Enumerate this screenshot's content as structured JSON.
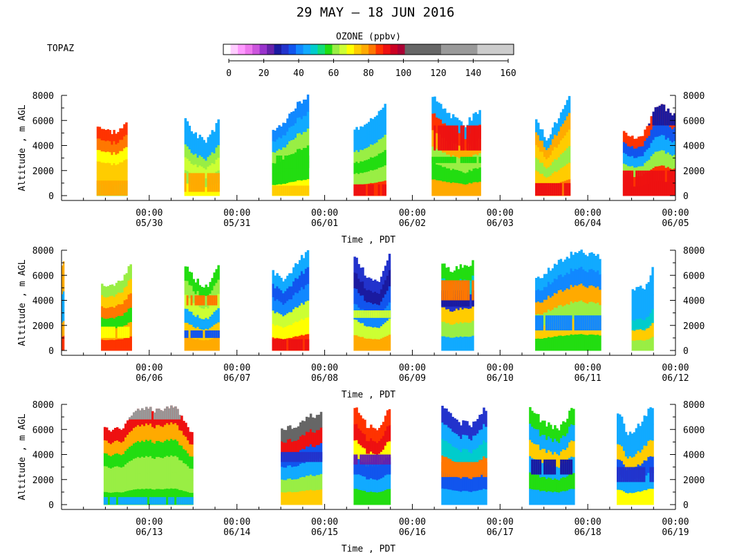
{
  "title": "29 MAY – 18 JUN 2016",
  "site_label": "TOPAZ",
  "colorbar": {
    "title": "OZONE (ppbv)",
    "ticks": [
      0,
      20,
      40,
      60,
      80,
      100,
      120,
      140,
      160
    ],
    "segments": [
      {
        "from": 0,
        "to": 4,
        "color": "#ffffff"
      },
      {
        "from": 4,
        "to": 8,
        "color": "#ffccff"
      },
      {
        "from": 8,
        "to": 12,
        "color": "#ff99ff"
      },
      {
        "from": 12,
        "to": 16,
        "color": "#ee77ee"
      },
      {
        "from": 16,
        "to": 20,
        "color": "#cc55dd"
      },
      {
        "from": 20,
        "to": 24,
        "color": "#9933cc"
      },
      {
        "from": 24,
        "to": 28,
        "color": "#6622aa"
      },
      {
        "from": 28,
        "to": 32,
        "color": "#1a1aa0"
      },
      {
        "from": 32,
        "to": 36,
        "color": "#2233cc"
      },
      {
        "from": 36,
        "to": 40,
        "color": "#1155ee"
      },
      {
        "from": 40,
        "to": 44,
        "color": "#1188ff"
      },
      {
        "from": 44,
        "to": 48,
        "color": "#11aaff"
      },
      {
        "from": 48,
        "to": 52,
        "color": "#00cccc"
      },
      {
        "from": 52,
        "to": 56,
        "color": "#11dd77"
      },
      {
        "from": 56,
        "to": 60,
        "color": "#22dd11"
      },
      {
        "from": 60,
        "to": 64,
        "color": "#99ee44"
      },
      {
        "from": 64,
        "to": 68,
        "color": "#ccff33"
      },
      {
        "from": 68,
        "to": 72,
        "color": "#ffff00"
      },
      {
        "from": 72,
        "to": 76,
        "color": "#ffcc00"
      },
      {
        "from": 76,
        "to": 80,
        "color": "#ffaa00"
      },
      {
        "from": 80,
        "to": 84,
        "color": "#ff7700"
      },
      {
        "from": 84,
        "to": 88,
        "color": "#ff3300"
      },
      {
        "from": 88,
        "to": 92,
        "color": "#ee1111"
      },
      {
        "from": 92,
        "to": 96,
        "color": "#cc0022"
      },
      {
        "from": 96,
        "to": 100,
        "color": "#aa0033"
      },
      {
        "from": 100,
        "to": 120,
        "color": "#666666"
      },
      {
        "from": 120,
        "to": 140,
        "color": "#999999"
      },
      {
        "from": 140,
        "to": 160,
        "color": "#cccccc"
      }
    ]
  },
  "chart_data": [
    {
      "type": "heatmap",
      "xlabel": "Time , PDT",
      "ylabel": "Altitude , m AGL",
      "ylim": [
        0,
        8000
      ],
      "yticks": [
        0,
        2000,
        4000,
        6000,
        8000
      ],
      "x_start_day": 29,
      "x_days": 7,
      "xticks": [
        "05/30",
        "05/31",
        "06/01",
        "06/02",
        "06/03",
        "06/04",
        "06/05"
      ],
      "xtick_time": "00:00",
      "periods": [
        {
          "start": 0.4,
          "end": 0.75,
          "top": [
            5700,
            5200,
            5100,
            5800
          ],
          "profile": [
            "#99ee44",
            "#ffcc00",
            "#ffcc00",
            "#ffff00",
            "#ff7700",
            "#ff3300"
          ],
          "bands": [
            {
              "y0": 0,
              "y1": 1200,
              "color": "#ffaa00"
            }
          ]
        },
        {
          "start": 1.4,
          "end": 1.8,
          "top": [
            6300,
            4800,
            4400,
            6000
          ],
          "profile": [
            "#ffff00",
            "#99ee44",
            "#ccff33",
            "#99ee44",
            "#11aaff",
            "#11aaff"
          ],
          "bands": [
            {
              "y0": 300,
              "y1": 1800,
              "color": "#ffaa00"
            }
          ]
        },
        {
          "start": 2.4,
          "end": 2.82,
          "top": [
            5200,
            5800,
            7200,
            8000
          ],
          "profile": [
            "#ffff00",
            "#22dd11",
            "#22dd11",
            "#99ee44",
            "#11aaff",
            "#1188ff"
          ],
          "bands": [
            {
              "y0": 0,
              "y1": 800,
              "color": "#ffcc00"
            },
            {
              "y0": 2200,
              "y1": 3200,
              "color": "#22dd11"
            }
          ]
        },
        {
          "start": 3.33,
          "end": 3.7,
          "top": [
            5200,
            5800,
            6500,
            7200
          ],
          "profile": [
            "#ff3300",
            "#99ee44",
            "#22dd11",
            "#99ee44",
            "#11aaff",
            "#11aaff"
          ],
          "bands": [
            {
              "y0": 0,
              "y1": 900,
              "color": "#ee1111"
            }
          ]
        },
        {
          "start": 4.22,
          "end": 4.78,
          "top": [
            8000,
            6600,
            5600,
            7000
          ],
          "profile": [
            "#ffaa00",
            "#22dd11",
            "#99ee44",
            "#ffaa00",
            "#ff3300",
            "#11aaff"
          ],
          "bands": [
            {
              "y0": 2600,
              "y1": 3100,
              "color": "#22dd11"
            },
            {
              "y0": 3600,
              "y1": 5600,
              "color": "#ee1111"
            }
          ]
        },
        {
          "start": 5.4,
          "end": 5.8,
          "top": [
            6000,
            4600,
            6200,
            7900
          ],
          "profile": [
            "#ff7700",
            "#ffcc00",
            "#99ee44",
            "#ffcc00",
            "#ffaa00",
            "#11aaff"
          ],
          "bands": [
            {
              "y0": 0,
              "y1": 1000,
              "color": "#ee1111"
            }
          ]
        },
        {
          "start": 6.4,
          "end": 7.0,
          "top": [
            5000,
            4600,
            7300,
            6500
          ],
          "profile": [
            "#ee1111",
            "#ff3300",
            "#99ee44",
            "#11aaff",
            "#1155ee",
            "#ff3300"
          ],
          "bands": [
            {
              "y0": 0,
              "y1": 2000,
              "color": "#ee1111"
            },
            {
              "y0": 5600,
              "y1": 7300,
              "color": "#1a1aa0"
            }
          ]
        }
      ]
    },
    {
      "type": "heatmap",
      "xlabel": "Time , PDT",
      "ylabel": "Altitude , m AGL",
      "ylim": [
        0,
        8000
      ],
      "yticks": [
        0,
        2000,
        4000,
        6000,
        8000
      ],
      "x_start_day": 5,
      "x_days": 7,
      "xticks": [
        "06/06",
        "06/07",
        "06/08",
        "06/09",
        "06/10",
        "06/11",
        "06/12"
      ],
      "xtick_time": "00:00",
      "periods": [
        {
          "start": 0.0,
          "end": 0.03,
          "top": [
            7000,
            7000
          ],
          "profile": [
            "#ff3300",
            "#ffaa00",
            "#11aaff",
            "#11aaff",
            "#ffaa00",
            "#ffaa00"
          ],
          "bands": []
        },
        {
          "start": 0.45,
          "end": 0.8,
          "top": [
            5300,
            5100,
            5600,
            6900
          ],
          "profile": [
            "#ff3300",
            "#ffaa00",
            "#22dd11",
            "#ff7700",
            "#ffcc00",
            "#99ee44"
          ],
          "bands": [
            {
              "y0": 1000,
              "y1": 1900,
              "color": "#ffff00"
            }
          ]
        },
        {
          "start": 1.4,
          "end": 1.8,
          "top": [
            7000,
            5600,
            5000,
            7000
          ],
          "profile": [
            "#ffaa00",
            "#ffcc00",
            "#11aaff",
            "#ccff33",
            "#99ee44",
            "#22dd11"
          ],
          "bands": [
            {
              "y0": 1000,
              "y1": 1600,
              "color": "#1155ee"
            },
            {
              "y0": 3600,
              "y1": 4400,
              "color": "#ff7700"
            }
          ]
        },
        {
          "start": 2.4,
          "end": 2.82,
          "top": [
            6300,
            5400,
            7000,
            8000
          ],
          "profile": [
            "#ff3300",
            "#ffff00",
            "#ccff33",
            "#1188ff",
            "#1155ee",
            "#11aaff"
          ],
          "bands": [
            {
              "y0": 0,
              "y1": 900,
              "color": "#ee1111"
            }
          ]
        },
        {
          "start": 3.33,
          "end": 3.75,
          "top": [
            7700,
            6000,
            5300,
            8000
          ],
          "profile": [
            "#ffaa00",
            "#ccff33",
            "#1188ff",
            "#1155ee",
            "#1a1aa0",
            "#2233cc"
          ],
          "bands": [
            {
              "y0": 2600,
              "y1": 3200,
              "color": "#ccff33"
            }
          ]
        },
        {
          "start": 4.33,
          "end": 4.7,
          "top": [
            7000,
            6300,
            6800,
            7000
          ],
          "profile": [
            "#11aaff",
            "#99ee44",
            "#ffcc00",
            "#2233cc",
            "#00cccc",
            "#22dd11"
          ],
          "bands": [
            {
              "y0": 3500,
              "y1": 4800,
              "color": "#1a1aa0"
            },
            {
              "y0": 4000,
              "y1": 5600,
              "color": "#ff7700"
            }
          ]
        },
        {
          "start": 5.4,
          "end": 6.15,
          "top": [
            5500,
            7000,
            8000,
            7400
          ],
          "profile": [
            "#22dd11",
            "#ffcc00",
            "#99ee44",
            "#ffaa00",
            "#1188ff",
            "#11aaff"
          ],
          "bands": [
            {
              "y0": 1600,
              "y1": 2800,
              "color": "#1188ff"
            }
          ]
        },
        {
          "start": 6.5,
          "end": 6.75,
          "top": [
            5000,
            5000,
            5000,
            6700
          ],
          "profile": [
            "#99ee44",
            "#ffcc00",
            "#00cccc",
            "#11aaff",
            "#11aaff",
            "#11aaff"
          ],
          "bands": []
        }
      ]
    },
    {
      "type": "heatmap",
      "xlabel": "Time , PDT",
      "ylabel": "Altitude , m AGL",
      "ylim": [
        0,
        8000
      ],
      "yticks": [
        0,
        2000,
        4000,
        6000,
        8000
      ],
      "x_start_day": 12,
      "x_days": 7,
      "xticks": [
        "06/13",
        "06/14",
        "06/15",
        "06/16",
        "06/17",
        "06/18",
        "06/19"
      ],
      "xtick_time": "00:00",
      "periods": [
        {
          "start": 0.48,
          "end": 1.5,
          "top": [
            6000,
            6000,
            7700,
            7500,
            8000,
            5500
          ],
          "profile": [
            "#22dd11",
            "#99ee44",
            "#99ee44",
            "#22dd11",
            "#ffaa00",
            "#ee1111"
          ],
          "bands": [
            {
              "y0": 0,
              "y1": 600,
              "color": "#11aaff"
            },
            {
              "y0": 6800,
              "y1": 8000,
              "color": "#999999"
            }
          ]
        },
        {
          "start": 2.5,
          "end": 2.97,
          "top": [
            6000,
            6200,
            7000,
            7300
          ],
          "profile": [
            "#ffcc00",
            "#99ee44",
            "#11aaff",
            "#1155ee",
            "#ee1111",
            "#666666"
          ],
          "bands": [
            {
              "y0": 3400,
              "y1": 4200,
              "color": "#2233cc"
            }
          ]
        },
        {
          "start": 3.33,
          "end": 3.75,
          "top": [
            8000,
            6400,
            5800,
            7900
          ],
          "profile": [
            "#22dd11",
            "#11aaff",
            "#1155ee",
            "#ffff00",
            "#ee1111",
            "#ff3300"
          ],
          "bands": [
            {
              "y0": 2400,
              "y1": 3400,
              "color": "#1155ee"
            },
            {
              "y0": 3200,
              "y1": 4000,
              "color": "#6622aa"
            }
          ]
        },
        {
          "start": 4.33,
          "end": 4.85,
          "top": [
            8000,
            6600,
            6400,
            7800
          ],
          "profile": [
            "#11aaff",
            "#1155ee",
            "#ff7700",
            "#00cccc",
            "#11aaff",
            "#2233cc"
          ],
          "bands": [
            {
              "y0": 2200,
              "y1": 3400,
              "color": "#ff7700"
            }
          ]
        },
        {
          "start": 5.33,
          "end": 5.85,
          "top": [
            7800,
            6500,
            6000,
            8000
          ],
          "profile": [
            "#11aaff",
            "#22dd11",
            "#11aaff",
            "#ffcc00",
            "#11aaff",
            "#22dd11"
          ],
          "bands": [
            {
              "y0": 2400,
              "y1": 3600,
              "color": "#1a1aa0"
            }
          ]
        },
        {
          "start": 6.33,
          "end": 6.75,
          "top": [
            7700,
            5500,
            6600,
            8000
          ],
          "profile": [
            "#ffff00",
            "#11aaff",
            "#1155ee",
            "#ffcc00",
            "#11aaff",
            "#11aaff"
          ],
          "bands": [
            {
              "y0": 1800,
              "y1": 3000,
              "color": "#2233cc"
            }
          ]
        }
      ]
    }
  ]
}
